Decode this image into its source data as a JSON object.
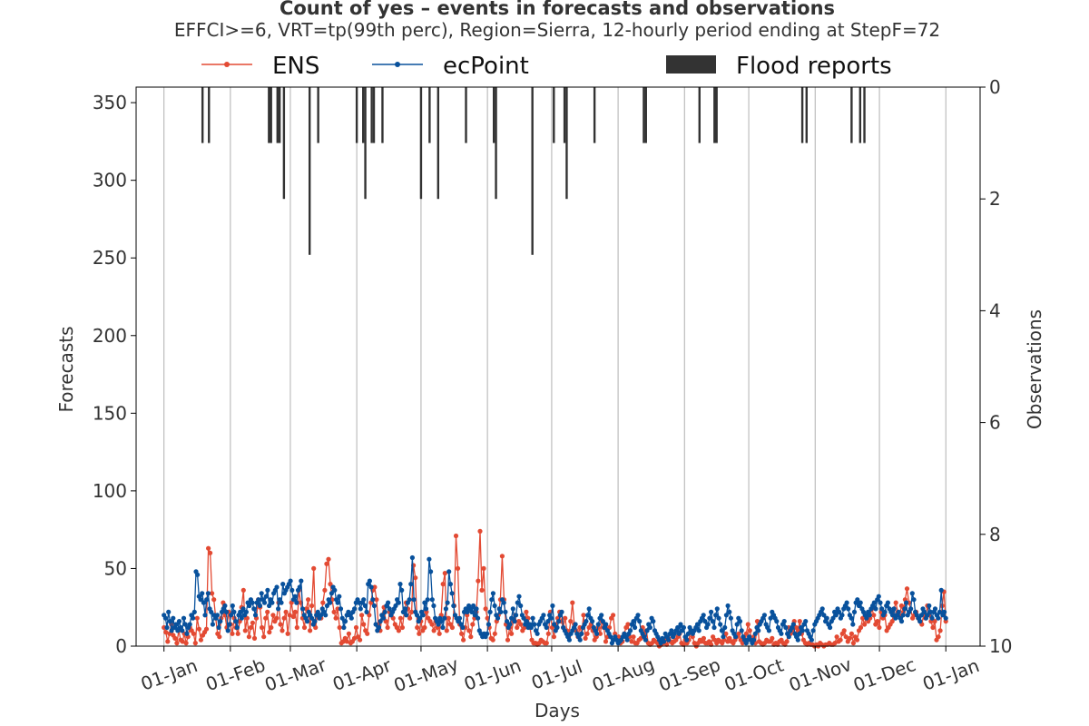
{
  "chart_data": {
    "type": "line",
    "title": "Count of yes – events in forecasts and observations",
    "subtitle": "EFFCI>=6, VRT=tp(99th perc), Region=Sierra, 12-hourly period ending at StepF=72",
    "xlabel": "Days",
    "ylabel_left": "Forecasts",
    "ylabel_right": "Observations",
    "x_ticks": [
      "01-Jan",
      "01-Feb",
      "01-Mar",
      "01-Apr",
      "01-May",
      "01-Jun",
      "01-Jul",
      "01-Aug",
      "01-Sep",
      "01-Oct",
      "01-Nov",
      "01-Dec",
      "01-Jan"
    ],
    "ylim_left": [
      0,
      360
    ],
    "y_ticks_left": [
      0,
      50,
      100,
      150,
      200,
      250,
      300,
      350
    ],
    "ylim_right_inverted": [
      10,
      0
    ],
    "y_ticks_right": [
      0,
      2,
      4,
      6,
      8,
      10
    ],
    "xlim_days": [
      -13,
      381
    ],
    "grid": "vertical",
    "legend_placement": "top",
    "legend": [
      {
        "label": "ENS",
        "color": "#e34a33",
        "style": "line-marker"
      },
      {
        "label": "ecPoint",
        "color": "#08519c",
        "style": "line-marker"
      },
      {
        "label": "Flood reports",
        "color": "#333333",
        "style": "bar"
      }
    ],
    "series": [
      {
        "name": "ENS",
        "color": "#e34a33",
        "values": [
          12,
          9,
          3,
          8,
          14,
          7,
          5,
          2,
          10,
          4,
          3,
          8,
          2,
          6,
          12,
          10,
          8,
          2,
          18,
          11,
          4,
          7,
          9,
          11,
          63,
          60,
          34,
          30,
          18,
          8,
          6,
          18,
          28,
          20,
          12,
          22,
          14,
          8,
          18,
          12,
          8,
          16,
          25,
          36,
          10,
          18,
          6,
          12,
          15,
          5,
          18,
          30,
          25,
          12,
          6,
          18,
          22,
          9,
          12,
          20,
          16,
          18,
          28,
          14,
          10,
          18,
          22,
          8,
          20,
          28,
          19,
          22,
          12,
          36,
          28,
          18,
          12,
          24,
          30,
          10,
          26,
          50,
          12,
          20,
          18,
          18,
          28,
          36,
          53,
          56,
          40,
          30,
          22,
          18,
          24,
          12,
          2,
          3,
          5,
          3,
          8,
          2,
          3,
          5,
          12,
          6,
          4,
          20,
          14,
          10,
          8,
          20,
          28,
          36,
          38,
          30,
          14,
          10,
          20,
          25,
          16,
          12,
          22,
          20,
          18,
          14,
          12,
          10,
          18,
          12,
          22,
          28,
          24,
          18,
          22,
          52,
          44,
          12,
          8,
          16,
          10,
          12,
          22,
          18,
          16,
          14,
          10,
          16,
          12,
          8,
          20,
          40,
          47,
          10,
          18,
          14,
          12,
          26,
          71,
          50,
          14,
          8,
          4,
          12,
          20,
          10,
          6,
          14,
          18,
          22,
          42,
          74,
          36,
          50,
          24,
          18,
          12,
          5,
          4,
          8,
          16,
          20,
          30,
          58,
          30,
          14,
          4,
          12,
          8,
          16,
          20,
          12,
          16,
          14,
          10,
          12,
          22,
          18,
          12,
          4,
          2,
          2,
          1,
          2,
          4,
          3,
          2,
          2,
          8,
          22,
          12,
          6,
          14,
          18,
          22,
          16,
          12,
          18,
          10,
          6,
          16,
          28,
          14,
          10,
          6,
          12,
          8,
          20,
          5,
          8,
          12,
          14,
          10,
          4,
          6,
          12,
          8,
          16,
          12,
          3,
          6,
          12,
          18,
          20,
          8,
          4,
          6,
          2,
          3,
          8,
          12,
          14,
          6,
          3,
          6,
          2,
          2,
          4,
          5,
          12,
          8,
          10,
          2,
          1,
          2,
          4,
          3,
          2,
          0,
          1,
          2,
          4,
          1,
          5,
          3,
          2,
          3,
          4,
          6,
          8,
          2,
          1,
          4,
          2,
          4,
          10,
          6,
          2,
          0,
          2,
          4,
          3,
          5,
          2,
          2,
          3,
          1,
          6,
          4,
          2,
          4,
          3,
          2,
          4,
          8,
          3,
          5,
          3,
          2,
          4,
          6,
          8,
          4,
          2,
          6,
          8,
          14,
          10,
          4,
          6,
          2,
          16,
          3,
          2,
          1,
          2,
          4,
          3,
          3,
          5,
          1,
          2,
          1,
          3,
          4,
          2,
          1,
          3,
          12,
          8,
          10,
          16,
          12,
          10,
          16,
          8,
          4,
          2,
          1,
          2,
          1,
          1,
          0,
          1,
          0,
          2,
          1,
          0,
          1,
          1,
          2,
          1,
          1,
          2,
          6,
          3,
          4,
          8,
          10,
          6,
          3,
          5,
          8,
          2,
          6,
          4,
          10,
          12,
          18,
          14,
          20,
          16,
          18,
          24,
          20,
          14,
          16,
          12,
          22,
          18,
          20,
          10,
          12,
          14,
          16,
          24,
          28,
          22,
          20,
          26,
          22,
          30,
          37,
          28,
          24,
          18,
          20,
          22,
          18,
          16,
          14,
          20,
          18,
          26,
          20,
          16,
          12,
          16,
          4,
          6,
          10,
          26,
          35,
          16
        ]
      },
      {
        "name": "ecPoint",
        "color": "#08519c",
        "values": [
          20,
          18,
          12,
          22,
          16,
          10,
          18,
          12,
          14,
          10,
          16,
          12,
          10,
          18,
          14,
          8,
          12,
          14,
          20,
          18,
          22,
          48,
          46,
          32,
          30,
          34,
          28,
          20,
          30,
          34,
          24,
          22,
          14,
          20,
          18,
          20,
          12,
          16,
          22,
          24,
          26,
          22,
          10,
          14,
          20,
          26,
          22,
          16,
          12,
          20,
          22,
          18,
          24,
          20,
          22,
          28,
          26,
          30,
          28,
          24,
          20,
          28,
          30,
          26,
          34,
          30,
          28,
          32,
          36,
          26,
          30,
          28,
          34,
          36,
          38,
          24,
          30,
          28,
          40,
          34,
          36,
          38,
          40,
          42,
          36,
          30,
          32,
          28,
          36,
          38,
          42,
          24,
          20,
          18,
          16,
          22,
          20,
          18,
          14,
          16,
          20,
          22,
          18,
          20,
          24,
          22,
          20,
          26,
          30,
          28,
          34,
          38,
          36,
          30,
          28,
          32,
          24,
          18,
          12,
          16,
          20,
          22,
          20,
          18,
          22,
          24,
          28,
          30,
          28,
          24,
          28,
          30,
          26,
          22,
          40,
          42,
          38,
          30,
          26,
          14,
          10,
          12,
          16,
          20,
          18,
          22,
          26,
          28,
          24,
          20,
          22,
          24,
          26,
          30,
          28,
          40,
          36,
          22,
          24,
          20,
          28,
          30,
          40,
          57,
          30,
          22,
          20,
          16,
          18,
          22,
          20,
          28,
          24,
          30,
          56,
          48,
          30,
          26,
          18,
          16,
          14,
          18,
          16,
          12,
          18,
          24,
          28,
          48,
          40,
          34,
          26,
          20,
          18,
          16,
          18,
          14,
          12,
          22,
          24,
          22,
          26,
          24,
          22,
          26,
          20,
          24,
          18,
          10,
          8,
          6,
          8,
          6,
          8,
          14,
          22,
          30,
          34,
          26,
          20,
          18,
          24,
          22,
          30,
          28,
          22,
          16,
          12,
          14,
          18,
          24,
          16,
          20,
          28,
          32,
          26,
          20,
          18,
          14,
          16,
          12,
          14,
          12,
          18,
          14,
          10,
          8,
          14,
          16,
          18,
          20,
          14,
          12,
          16,
          20,
          18,
          26,
          14,
          10,
          12,
          16,
          20,
          22,
          12,
          10,
          8,
          6,
          4,
          8,
          10,
          12,
          14,
          8,
          6,
          4,
          8,
          12,
          14,
          16,
          20,
          24,
          18,
          16,
          12,
          10,
          8,
          14,
          18,
          20,
          16,
          12,
          14,
          10,
          8,
          6,
          2,
          4,
          6,
          4,
          2,
          3,
          4,
          6,
          8,
          6,
          4,
          8,
          10,
          14,
          16,
          12,
          18,
          20,
          16,
          10,
          8,
          6,
          4,
          10,
          14,
          12,
          18,
          16,
          10,
          8,
          6,
          4,
          2,
          5,
          3,
          8,
          6,
          4,
          8,
          10,
          6,
          8,
          10,
          12,
          8,
          14,
          10,
          12,
          6,
          4,
          8,
          12,
          10,
          8,
          10,
          12,
          14,
          10,
          16,
          18,
          20,
          16,
          12,
          14,
          18,
          22,
          16,
          12,
          20,
          24,
          18,
          14,
          10,
          6,
          12,
          20,
          26,
          22,
          18,
          10,
          8,
          6,
          14,
          18,
          16,
          10,
          6,
          4,
          2,
          4,
          6,
          4,
          2,
          4,
          8,
          12,
          10,
          14,
          16,
          18,
          20,
          14,
          12,
          10,
          18,
          22,
          20,
          18,
          16,
          12,
          10,
          8,
          14,
          16,
          12,
          8,
          6,
          10,
          12,
          14,
          8,
          6,
          4,
          8,
          12,
          10,
          14,
          16,
          10,
          8,
          6,
          4,
          10,
          14,
          16,
          18,
          20,
          22,
          24,
          20,
          16,
          18,
          14,
          12,
          16,
          18,
          22,
          20,
          24,
          22,
          18,
          20,
          24,
          26,
          28,
          24,
          20,
          18,
          14,
          22,
          28,
          30,
          26,
          28,
          24,
          22,
          20,
          18,
          22,
          20,
          24,
          26,
          28,
          24,
          30,
          32,
          28,
          24,
          20,
          22,
          26,
          28,
          24,
          22,
          20,
          24,
          18,
          20,
          22,
          18,
          16,
          20,
          24,
          28,
          20,
          22,
          24,
          34,
          30,
          22,
          20,
          18,
          16,
          20,
          24,
          22,
          18,
          20,
          26,
          22,
          18,
          22,
          24,
          20,
          18,
          22,
          36,
          20,
          22,
          18
        ]
      },
      {
        "name": "Flood reports",
        "color": "#333333",
        "type": "bar",
        "axis": "right",
        "points": [
          [
            18,
            1
          ],
          [
            21,
            1
          ],
          [
            49,
            1
          ],
          [
            50,
            1
          ],
          [
            53,
            1
          ],
          [
            54,
            1
          ],
          [
            56,
            2
          ],
          [
            68,
            3
          ],
          [
            72,
            1
          ],
          [
            90,
            1
          ],
          [
            93,
            1
          ],
          [
            94,
            2
          ],
          [
            97,
            1
          ],
          [
            98,
            1
          ],
          [
            102,
            1
          ],
          [
            120,
            2
          ],
          [
            124,
            1
          ],
          [
            128,
            2
          ],
          [
            141,
            1
          ],
          [
            154,
            1
          ],
          [
            155,
            2
          ],
          [
            172,
            3
          ],
          [
            182,
            1
          ],
          [
            187,
            1
          ],
          [
            188,
            2
          ],
          [
            201,
            1
          ],
          [
            224,
            1
          ],
          [
            225,
            1
          ],
          [
            250,
            1
          ],
          [
            257,
            1
          ],
          [
            258,
            1
          ],
          [
            298,
            1
          ],
          [
            300,
            1
          ],
          [
            321,
            1
          ],
          [
            325,
            1
          ],
          [
            327,
            1
          ]
        ]
      }
    ]
  }
}
